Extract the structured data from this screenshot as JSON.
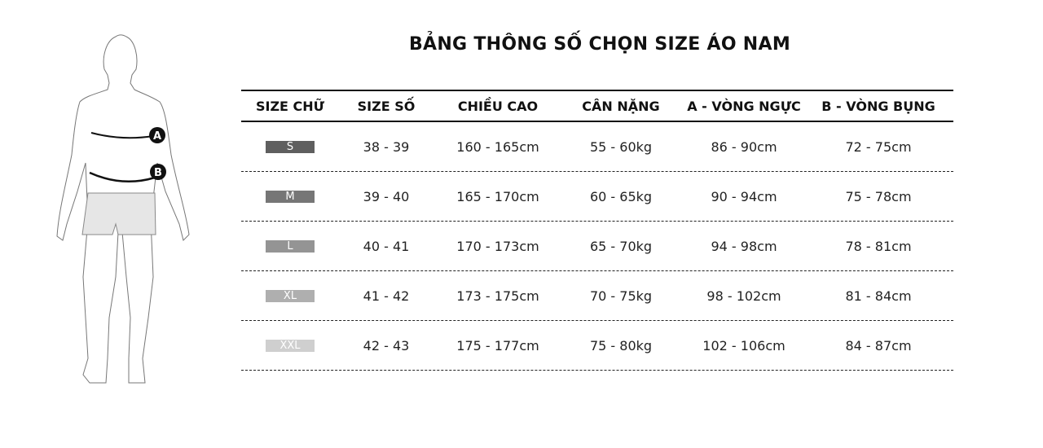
{
  "title": "BẢNG THÔNG SỐ CHỌN SIZE ÁO NAM",
  "figure": {
    "marker_a": "A",
    "marker_b": "B"
  },
  "table": {
    "headers": [
      "SIZE CHỮ",
      "SIZE SỐ",
      "CHIỀU CAO",
      "CÂN NẶNG",
      "A - VÒNG NGỰC",
      "B - VÒNG BỤNG"
    ],
    "rows": [
      {
        "size": "S",
        "badge_color": "#5f5f5f",
        "number": "38 - 39",
        "height": "160 - 165cm",
        "weight": "55 - 60kg",
        "chest": "86 - 90cm",
        "waist": "72 - 75cm"
      },
      {
        "size": "M",
        "badge_color": "#767676",
        "number": "39 - 40",
        "height": "165 - 170cm",
        "weight": "60 - 65kg",
        "chest": "90 - 94cm",
        "waist": "75 - 78cm"
      },
      {
        "size": "L",
        "badge_color": "#949494",
        "number": "40 - 41",
        "height": "170 - 173cm",
        "weight": "65 - 70kg",
        "chest": "94 - 98cm",
        "waist": "78 - 81cm"
      },
      {
        "size": "XL",
        "badge_color": "#afafaf",
        "number": "41 - 42",
        "height": "173 - 175cm",
        "weight": "70 - 75kg",
        "chest": "98 - 102cm",
        "waist": "81 - 84cm"
      },
      {
        "size": "XXL",
        "badge_color": "#cfcfcf",
        "number": "42 - 43",
        "height": "175 - 177cm",
        "weight": "75 - 80kg",
        "chest": "102 - 106cm",
        "waist": "84 - 87cm"
      }
    ]
  }
}
